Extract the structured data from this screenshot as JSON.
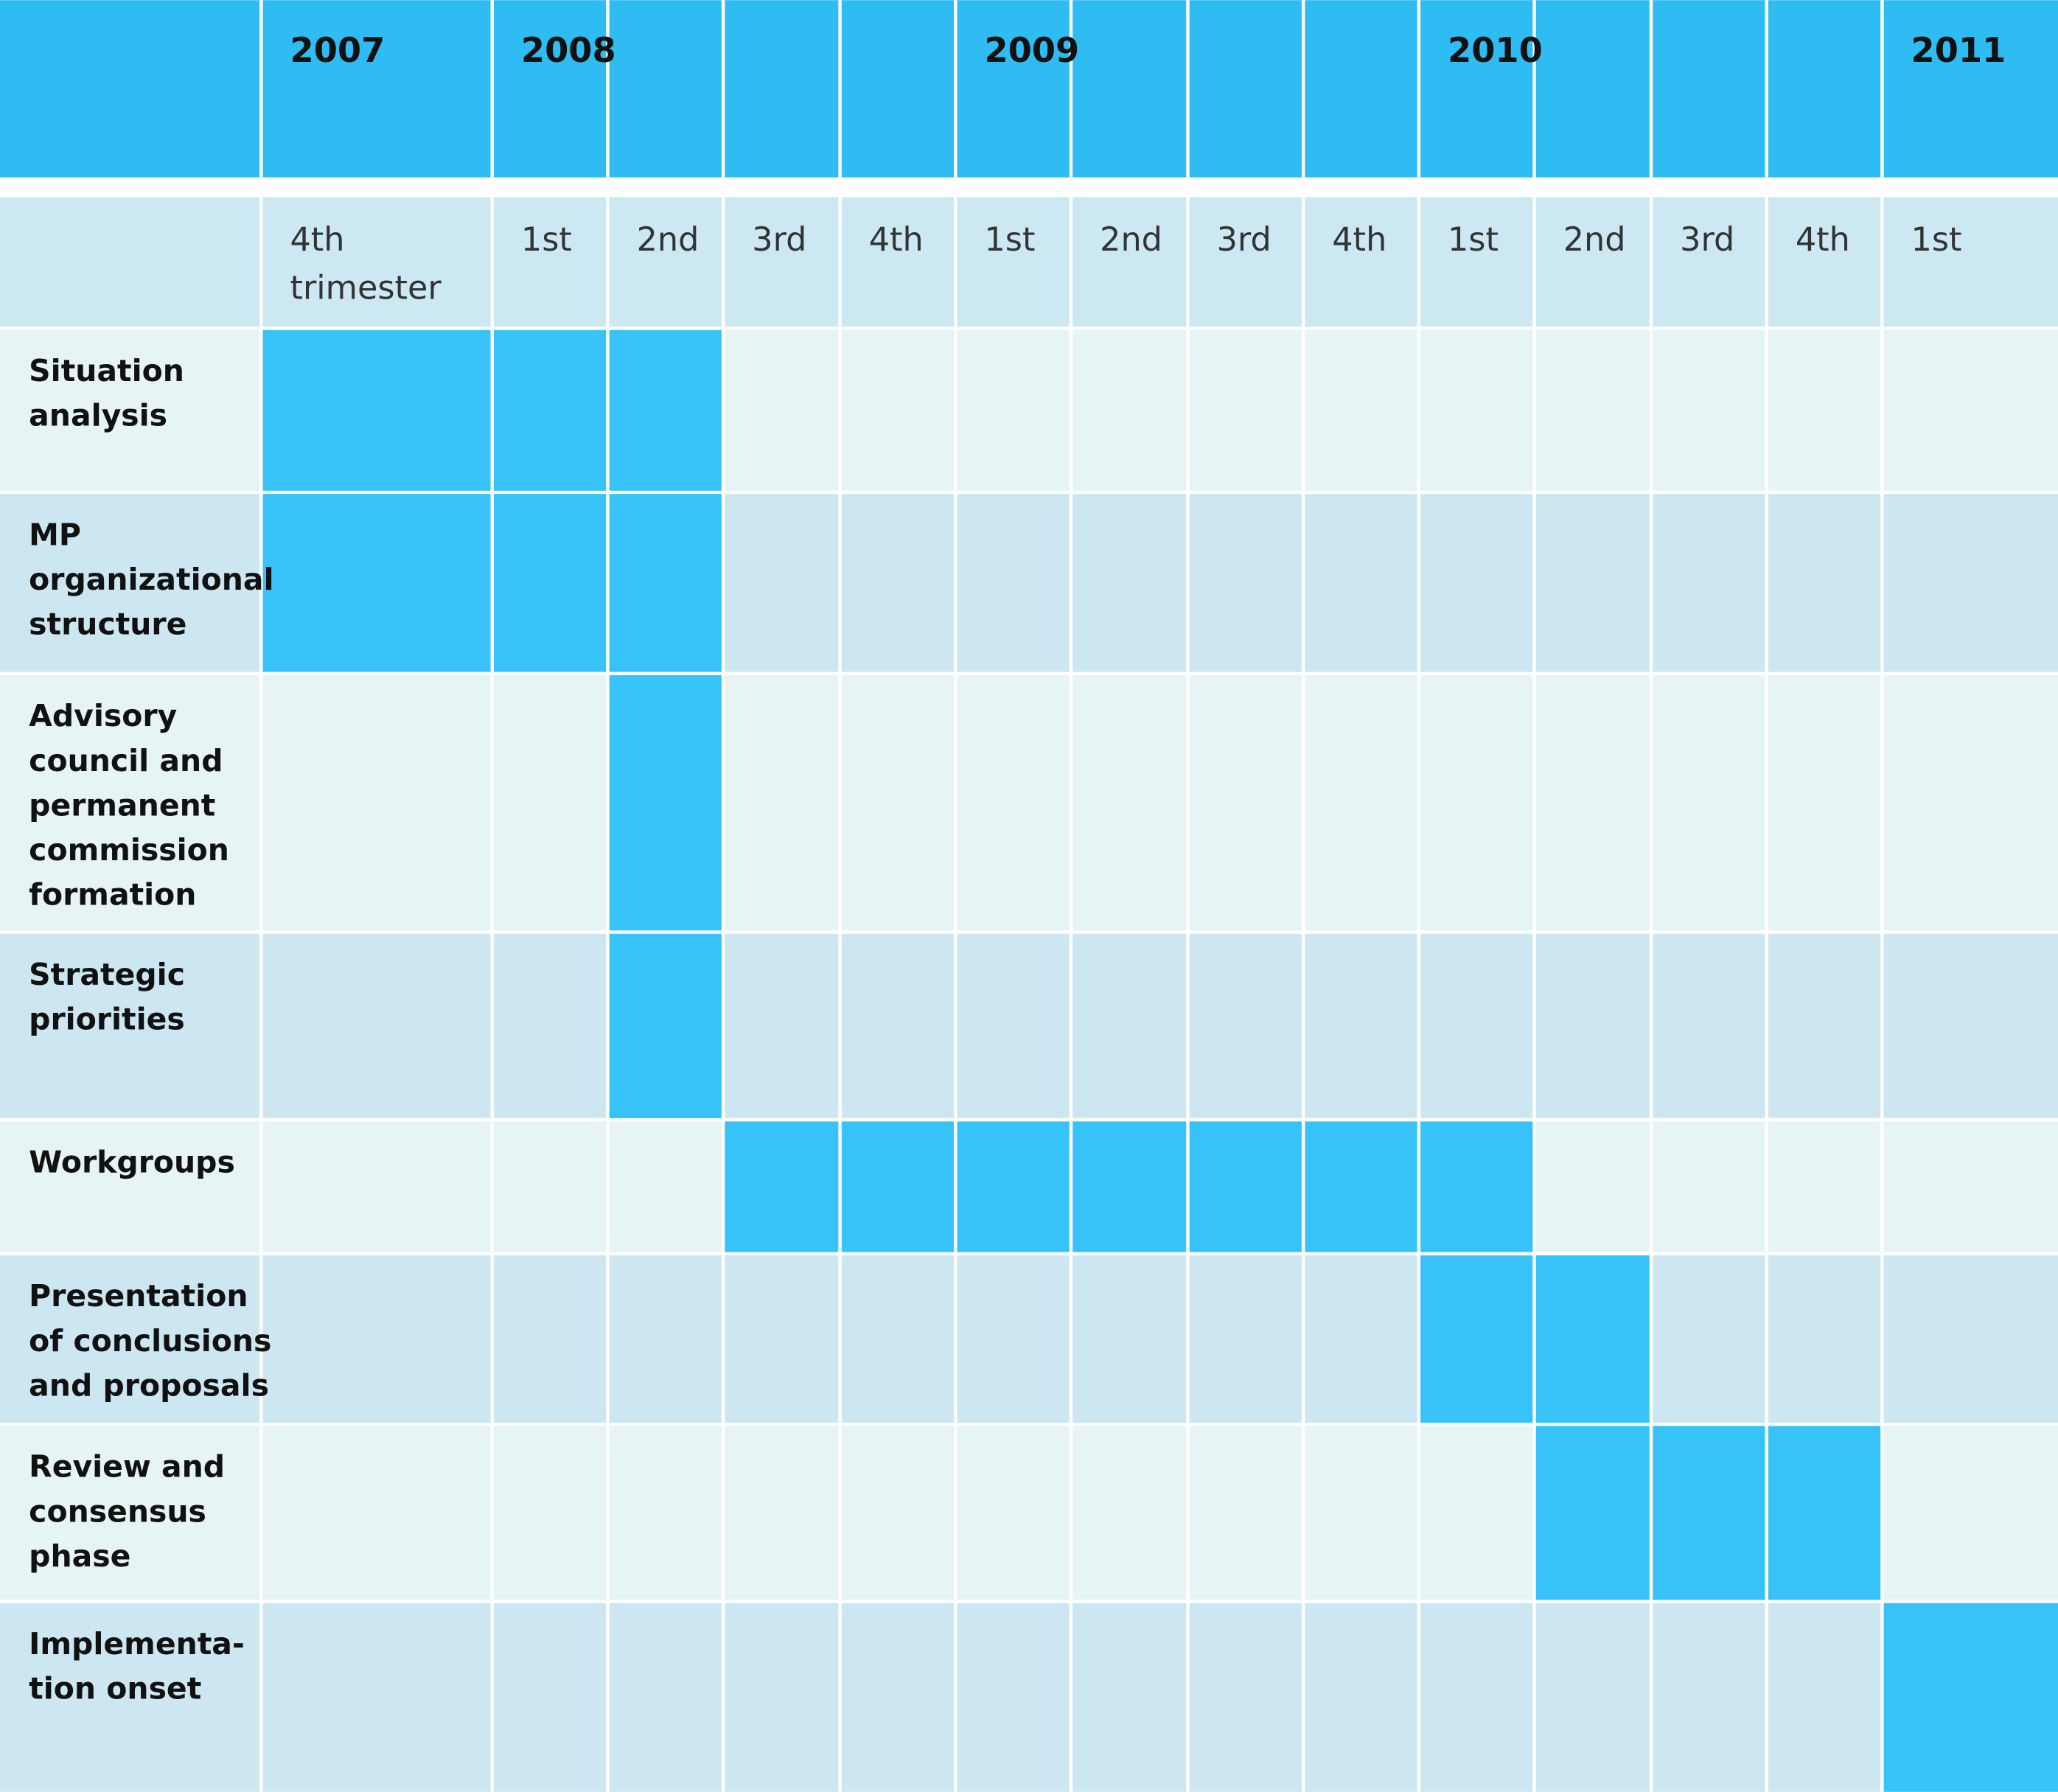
{
  "timeline": {
    "years": [
      {
        "label": "2007",
        "quarters": [
          [
            "4th",
            "trimester"
          ]
        ]
      },
      {
        "label": "2008",
        "quarters": [
          [
            "1st"
          ],
          [
            "2nd"
          ],
          [
            "3rd"
          ],
          [
            "4th"
          ]
        ]
      },
      {
        "label": "2009",
        "quarters": [
          [
            "1st"
          ],
          [
            "2nd"
          ],
          [
            "3rd"
          ],
          [
            "4th"
          ]
        ]
      },
      {
        "label": "2010",
        "quarters": [
          [
            "1st"
          ],
          [
            "2nd"
          ],
          [
            "3rd"
          ],
          [
            "4th"
          ]
        ]
      },
      {
        "label": "2011",
        "quarters": [
          [
            "1st"
          ]
        ]
      }
    ],
    "tasks": [
      {
        "label": [
          "Situation",
          "analysis"
        ],
        "start": 0,
        "end": 2
      },
      {
        "label": [
          "MP",
          "organizational",
          "structure"
        ],
        "start": 0,
        "end": 2
      },
      {
        "label": [
          "Advisory",
          "council and",
          "permanent",
          "commission",
          "formation"
        ],
        "start": 2,
        "end": 2
      },
      {
        "label": [
          "Strategic",
          "priorities"
        ],
        "start": 2,
        "end": 2
      },
      {
        "label": [
          "Workgroups"
        ],
        "start": 3,
        "end": 9
      },
      {
        "label": [
          "Presentation",
          "of conclusions",
          "and proposals"
        ],
        "start": 9,
        "end": 10
      },
      {
        "label": [
          "Review and",
          "consensus",
          "phase"
        ],
        "start": 10,
        "end": 12
      },
      {
        "label": [
          "Implementa-",
          "tion onset"
        ],
        "start": 13,
        "end": 13
      }
    ]
  }
}
